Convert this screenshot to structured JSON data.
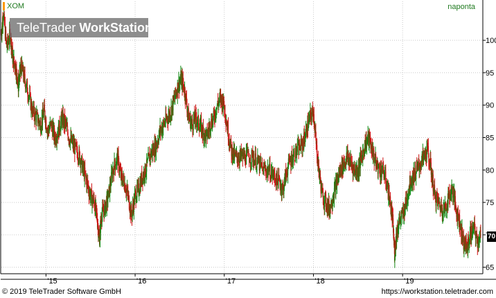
{
  "header": {
    "symbol": "XOM",
    "period": "naponta"
  },
  "watermark": {
    "brand_regular": "TeleTrader ",
    "brand_bold": "WorkStation"
  },
  "last_price_badge": "70",
  "footer": {
    "copyright": "© 2019 TeleTrader Software GmbH",
    "url": "https://workstation.teletrader.com"
  },
  "colors": {
    "up": "#118811",
    "down": "#cc1111",
    "grid": "#c8c8c8",
    "accent": "#ff9900"
  },
  "chart_data": {
    "type": "candlestick",
    "symbol": "XOM",
    "interval": "naponta",
    "xlabel": "",
    "ylabel": "",
    "x_ticks": [
      "'15",
      "'16",
      "'17",
      "'18",
      "'19"
    ],
    "x_range": [
      2014.5,
      2019.9
    ],
    "y_ticks": [
      65,
      70,
      75,
      80,
      85,
      90,
      95,
      100
    ],
    "ylim": [
      64,
      106
    ],
    "last_value": 70,
    "grid": true,
    "series_points": [
      [
        2014.5,
        101
      ],
      [
        2014.52,
        104
      ],
      [
        2014.56,
        99
      ],
      [
        2014.6,
        101
      ],
      [
        2014.63,
        97
      ],
      [
        2014.66,
        96
      ],
      [
        2014.69,
        93
      ],
      [
        2014.72,
        96
      ],
      [
        2014.76,
        94
      ],
      [
        2014.8,
        92
      ],
      [
        2014.85,
        89
      ],
      [
        2014.9,
        88
      ],
      [
        2014.94,
        87
      ],
      [
        2014.98,
        89
      ],
      [
        2015.02,
        86
      ],
      [
        2015.06,
        87
      ],
      [
        2015.1,
        85
      ],
      [
        2015.14,
        86
      ],
      [
        2015.18,
        88
      ],
      [
        2015.22,
        87
      ],
      [
        2015.26,
        85
      ],
      [
        2015.3,
        84
      ],
      [
        2015.34,
        83
      ],
      [
        2015.38,
        82
      ],
      [
        2015.42,
        80
      ],
      [
        2015.46,
        78
      ],
      [
        2015.5,
        76
      ],
      [
        2015.54,
        75
      ],
      [
        2015.57,
        73
      ],
      [
        2015.6,
        69
      ],
      [
        2015.62,
        73
      ],
      [
        2015.66,
        74
      ],
      [
        2015.7,
        76
      ],
      [
        2015.75,
        80
      ],
      [
        2015.8,
        82
      ],
      [
        2015.84,
        79
      ],
      [
        2015.88,
        78
      ],
      [
        2015.92,
        76
      ],
      [
        2015.96,
        73
      ],
      [
        2016.0,
        76
      ],
      [
        2016.04,
        77
      ],
      [
        2016.08,
        79
      ],
      [
        2016.12,
        80
      ],
      [
        2016.16,
        82
      ],
      [
        2016.2,
        83
      ],
      [
        2016.24,
        84
      ],
      [
        2016.28,
        86
      ],
      [
        2016.32,
        87
      ],
      [
        2016.36,
        88
      ],
      [
        2016.4,
        89
      ],
      [
        2016.44,
        91
      ],
      [
        2016.48,
        93
      ],
      [
        2016.52,
        94
      ],
      [
        2016.56,
        92
      ],
      [
        2016.6,
        88
      ],
      [
        2016.64,
        87
      ],
      [
        2016.68,
        88
      ],
      [
        2016.72,
        87
      ],
      [
        2016.76,
        86
      ],
      [
        2016.8,
        85
      ],
      [
        2016.84,
        87
      ],
      [
        2016.88,
        88
      ],
      [
        2016.92,
        90
      ],
      [
        2016.96,
        91
      ],
      [
        2017.0,
        90
      ],
      [
        2017.04,
        86
      ],
      [
        2017.08,
        83
      ],
      [
        2017.12,
        82
      ],
      [
        2017.16,
        82
      ],
      [
        2017.2,
        82
      ],
      [
        2017.26,
        82
      ],
      [
        2017.32,
        82
      ],
      [
        2017.38,
        81
      ],
      [
        2017.44,
        80
      ],
      [
        2017.5,
        80
      ],
      [
        2017.56,
        79
      ],
      [
        2017.62,
        78
      ],
      [
        2017.66,
        77
      ],
      [
        2017.7,
        80
      ],
      [
        2017.76,
        82
      ],
      [
        2017.82,
        83
      ],
      [
        2017.88,
        84
      ],
      [
        2017.92,
        86
      ],
      [
        2017.96,
        88
      ],
      [
        2018.0,
        89
      ],
      [
        2018.03,
        84
      ],
      [
        2018.06,
        80
      ],
      [
        2018.1,
        76
      ],
      [
        2018.14,
        75
      ],
      [
        2018.18,
        74
      ],
      [
        2018.22,
        76
      ],
      [
        2018.26,
        78
      ],
      [
        2018.3,
        80
      ],
      [
        2018.34,
        81
      ],
      [
        2018.38,
        82
      ],
      [
        2018.42,
        81
      ],
      [
        2018.46,
        80
      ],
      [
        2018.5,
        80
      ],
      [
        2018.54,
        82
      ],
      [
        2018.58,
        84
      ],
      [
        2018.62,
        85
      ],
      [
        2018.66,
        83
      ],
      [
        2018.7,
        81
      ],
      [
        2018.74,
        80
      ],
      [
        2018.78,
        80
      ],
      [
        2018.82,
        78
      ],
      [
        2018.86,
        75
      ],
      [
        2018.89,
        72
      ],
      [
        2018.91,
        67
      ],
      [
        2018.93,
        70
      ],
      [
        2018.96,
        72
      ],
      [
        2019.0,
        73
      ],
      [
        2019.04,
        75
      ],
      [
        2019.08,
        78
      ],
      [
        2019.12,
        79
      ],
      [
        2019.16,
        80
      ],
      [
        2019.2,
        81
      ],
      [
        2019.24,
        82
      ],
      [
        2019.28,
        83
      ],
      [
        2019.32,
        80
      ],
      [
        2019.36,
        76
      ],
      [
        2019.4,
        75
      ],
      [
        2019.44,
        74
      ],
      [
        2019.48,
        74
      ],
      [
        2019.52,
        76
      ],
      [
        2019.56,
        77
      ],
      [
        2019.6,
        74
      ],
      [
        2019.64,
        72
      ],
      [
        2019.68,
        69
      ],
      [
        2019.72,
        68
      ],
      [
        2019.76,
        70
      ],
      [
        2019.8,
        71
      ],
      [
        2019.84,
        69
      ],
      [
        2019.88,
        70
      ]
    ]
  }
}
